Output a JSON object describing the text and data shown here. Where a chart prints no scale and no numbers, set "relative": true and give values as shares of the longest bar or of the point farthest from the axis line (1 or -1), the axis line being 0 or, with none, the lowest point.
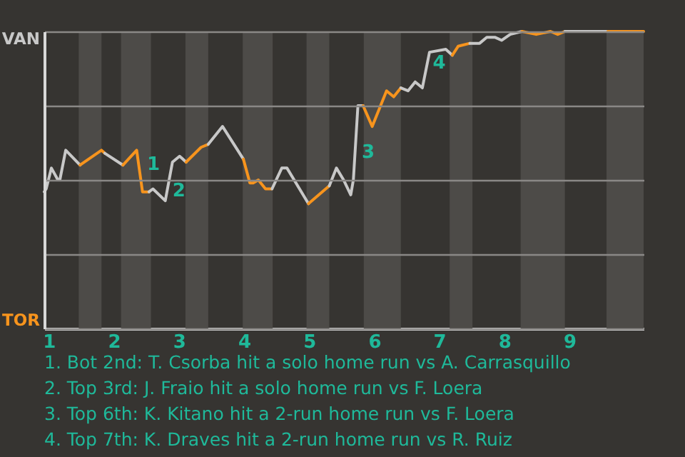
{
  "chart_data": {
    "type": "line",
    "relative": true,
    "xlim": [
      0.93,
      10.14
    ],
    "xticks": [
      1,
      2,
      3,
      4,
      5,
      6,
      7,
      8,
      9
    ],
    "grid": "y",
    "series": [
      {
        "color": "#c8c8c8",
        "x": [
          0.93,
          0.96,
          1.04,
          1.14,
          1.17,
          1.26,
          1.48
        ],
        "values": [
          0.46,
          0.47,
          0.54,
          0.5,
          0.5,
          0.6,
          0.55
        ]
      },
      {
        "color": "#f7941d",
        "x": [
          1.48,
          1.81,
          1.86
        ],
        "values": [
          0.55,
          0.6,
          0.59
        ]
      },
      {
        "color": "#c8c8c8",
        "x": [
          1.86,
          2.14
        ],
        "values": [
          0.59,
          0.55
        ]
      },
      {
        "color": "#f7941d",
        "x": [
          2.14,
          2.35,
          2.44,
          2.54
        ],
        "values": [
          0.55,
          0.6,
          0.46,
          0.46
        ]
      },
      {
        "color": "#c8c8c8",
        "x": [
          2.54,
          2.6,
          2.79,
          2.9,
          3.01,
          3.11
        ],
        "values": [
          0.46,
          0.47,
          0.43,
          0.56,
          0.58,
          0.56
        ]
      },
      {
        "color": "#f7941d",
        "x": [
          3.11,
          3.34,
          3.45
        ],
        "values": [
          0.56,
          0.61,
          0.62
        ]
      },
      {
        "color": "#c8c8c8",
        "x": [
          3.45,
          3.67,
          3.99
        ],
        "values": [
          0.62,
          0.68,
          0.57
        ]
      },
      {
        "color": "#f7941d",
        "x": [
          3.99,
          4.09,
          4.14,
          4.22,
          4.33,
          4.43
        ],
        "values": [
          0.57,
          0.49,
          0.49,
          0.5,
          0.47,
          0.47
        ]
      },
      {
        "color": "#c8c8c8",
        "x": [
          4.43,
          4.58,
          4.66,
          4.99
        ],
        "values": [
          0.47,
          0.54,
          0.54,
          0.42
        ]
      },
      {
        "color": "#f7941d",
        "x": [
          4.99,
          5.31
        ],
        "values": [
          0.42,
          0.48
        ]
      },
      {
        "color": "#c8c8c8",
        "x": [
          5.31,
          5.42,
          5.53,
          5.64,
          5.68,
          5.75,
          5.83
        ],
        "values": [
          0.48,
          0.54,
          0.5,
          0.45,
          0.5,
          0.75,
          0.75
        ]
      },
      {
        "color": "#f7941d",
        "x": [
          5.83,
          5.97,
          6.19,
          6.3,
          6.41
        ],
        "values": [
          0.75,
          0.68,
          0.8,
          0.78,
          0.81
        ]
      },
      {
        "color": "#c8c8c8",
        "x": [
          6.41,
          6.52,
          6.63,
          6.74,
          6.85,
          7.1,
          7.2
        ],
        "values": [
          0.81,
          0.8,
          0.83,
          0.81,
          0.93,
          0.94,
          0.92
        ]
      },
      {
        "color": "#f7941d",
        "x": [
          7.2,
          7.29,
          7.47
        ],
        "values": [
          0.92,
          0.95,
          0.96
        ]
      },
      {
        "color": "#c8c8c8",
        "x": [
          7.47,
          7.62,
          7.73,
          7.86,
          7.96,
          8.09,
          8.27
        ],
        "values": [
          0.96,
          0.96,
          0.98,
          0.98,
          0.97,
          0.99,
          1
        ]
      },
      {
        "color": "#f7941d",
        "x": [
          8.27,
          8.49,
          8.71,
          8.82,
          8.93
        ],
        "values": [
          1,
          0.99,
          1,
          0.99,
          1
        ]
      },
      {
        "color": "#c8c8c8",
        "x": [
          8.93,
          9.59
        ],
        "values": [
          1,
          1
        ]
      },
      {
        "color": "#f7941d",
        "x": [
          9.59,
          9.92,
          10.14
        ],
        "values": [
          1,
          1,
          1
        ]
      }
    ],
    "bands": [
      {
        "axis": "x",
        "from": 1.46,
        "to": 1.81,
        "color": "#4d4b48"
      },
      {
        "axis": "x",
        "from": 2.11,
        "to": 2.57,
        "color": "#4d4b48"
      },
      {
        "axis": "x",
        "from": 3.1,
        "to": 3.45,
        "color": "#4d4b48"
      },
      {
        "axis": "x",
        "from": 3.98,
        "to": 4.44,
        "color": "#4d4b48"
      },
      {
        "axis": "x",
        "from": 4.96,
        "to": 5.31,
        "color": "#4d4b48"
      },
      {
        "axis": "x",
        "from": 5.84,
        "to": 6.41,
        "color": "#4d4b48"
      },
      {
        "axis": "x",
        "from": 7.16,
        "to": 7.51,
        "color": "#4d4b48"
      },
      {
        "axis": "x",
        "from": 8.25,
        "to": 8.93,
        "color": "#4d4b48"
      },
      {
        "axis": "x",
        "from": 9.57,
        "to": 10.14,
        "color": "#4d4b48"
      }
    ],
    "annotations": [
      "VAN",
      "TOR",
      {
        "text": "1",
        "x": 2.4,
        "y": 0.52
      },
      {
        "text": "2",
        "x": 2.79,
        "y": 0.43
      },
      {
        "text": "3",
        "x": 5.7,
        "y": 0.56
      },
      {
        "text": "4",
        "x": 6.79,
        "y": 0.86
      },
      "1. Bot 2nd: T. Csorba hit a solo home run vs A. Carrasquillo",
      "2. Top 3rd: J. Fraio hit a solo home run vs F. Loera",
      "3. Top 6th: K. Kitano hit a 2-run home run vs F. Loera",
      "4. Top 7th: K. Draves hit a 2-run home run vs R. Ruiz"
    ]
  }
}
